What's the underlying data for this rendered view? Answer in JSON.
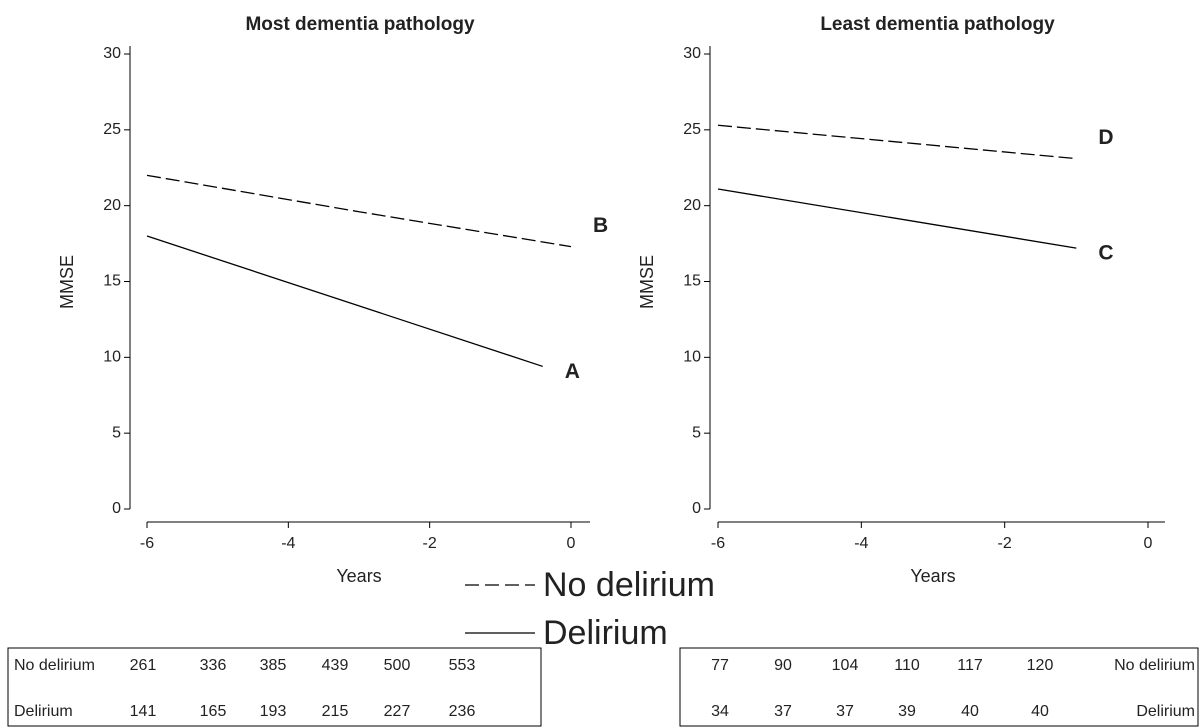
{
  "chart_data": [
    {
      "type": "line",
      "title": "Most dementia pathology",
      "xlabel": "Years",
      "ylabel": "MMSE",
      "xlim": [
        -6,
        0
      ],
      "ylim": [
        0,
        30
      ],
      "xticks": [
        -6,
        -4,
        -2,
        0
      ],
      "yticks": [
        0,
        5,
        10,
        15,
        20,
        25,
        30
      ],
      "series": [
        {
          "color": "#000000",
          "dash": true,
          "x": [
            -6,
            -3,
            0
          ],
          "values": [
            22,
            19.6,
            17.3
          ],
          "end_label": "B"
        },
        {
          "color": "#000000",
          "dash": false,
          "x": [
            -6,
            -0.4
          ],
          "values": [
            18,
            9.4
          ],
          "end_label": "A"
        }
      ]
    },
    {
      "type": "line",
      "title": "Least dementia pathology",
      "xlabel": "Years",
      "ylabel": "MMSE",
      "xlim": [
        -6,
        0
      ],
      "ylim": [
        0,
        30
      ],
      "xticks": [
        -6,
        -4,
        -2,
        0
      ],
      "yticks": [
        0,
        5,
        10,
        15,
        20,
        25,
        30
      ],
      "series": [
        {
          "color": "#000000",
          "dash": true,
          "x": [
            -6,
            -1
          ],
          "values": [
            25.3,
            23.1
          ],
          "end_label": "D"
        },
        {
          "color": "#000000",
          "dash": false,
          "x": [
            -6,
            -1
          ],
          "values": [
            21.1,
            17.2
          ],
          "end_label": "C"
        }
      ]
    }
  ],
  "legend": [
    {
      "name": "No delirium",
      "dash": true
    },
    {
      "name": "Delirium",
      "dash": false
    }
  ],
  "tables": [
    {
      "rows": [
        [
          "No delirium",
          261,
          336,
          385,
          439,
          500,
          553
        ],
        [
          "Delirium",
          141,
          165,
          193,
          215,
          227,
          236
        ]
      ]
    },
    {
      "rows": [
        [
          77,
          90,
          104,
          110,
          117,
          120,
          "No delirium"
        ],
        [
          34,
          37,
          37,
          39,
          40,
          40,
          "Delirium"
        ]
      ]
    }
  ]
}
